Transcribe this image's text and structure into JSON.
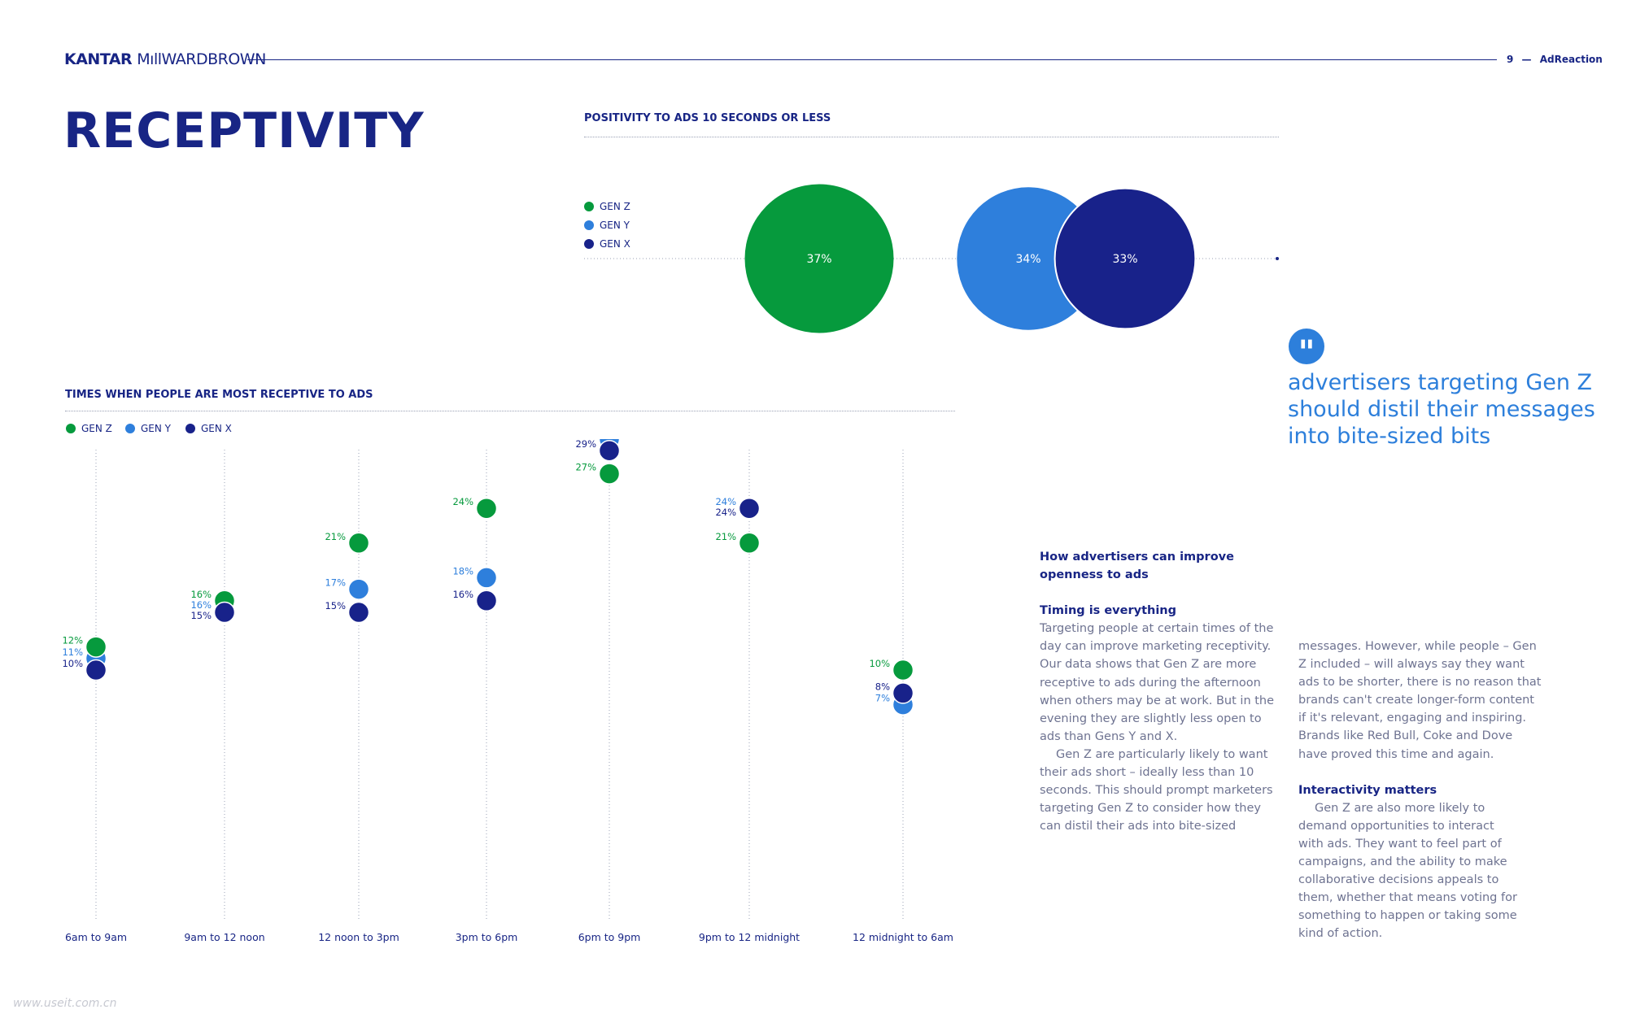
{
  "header": {
    "brand_left": "KANTAR",
    "brand_right": "MıllWARDBROWN",
    "page_number": "9",
    "page_dash": "—",
    "publication": "AdReaction"
  },
  "page_title": "RECEPTIVITY",
  "colors": {
    "gen_z": "#069a3d",
    "gen_y": "#2e7fdc",
    "gen_x": "#18228a",
    "navy_text": "#182585",
    "body_text": "#6e7391"
  },
  "legend": [
    "GEN Z",
    "GEN Y",
    "GEN X"
  ],
  "quote": {
    "icon": "quote-icon",
    "text": "advertisers targeting Gen Z should distil their messages into bite-sized bits"
  },
  "article": {
    "heading": "How advertisers can improve openness to ads",
    "section1_title": "Timing is everything",
    "para1": "Targeting people at certain times of the day can improve marketing receptivity. Our data shows that Gen Z are more receptive to ads during the afternoon when others may be at work. But in the evening they are slightly less open to ads than Gens Y and X.",
    "para2": "Gen Z are particularly likely to want their ads short – ideally less than 10 seconds. This should prompt marketers targeting Gen Z to consider how they can distil their ads into bite-sized",
    "para3": "messages. However, while people – Gen Z included – will always say they want ads to be shorter, there is no reason that brands can't create longer-form content if it's relevant, engaging and inspiring. Brands like Red Bull, Coke and Dove have proved this time and again.",
    "section2_title": "Interactivity matters",
    "para4": "Gen Z are also more likely to demand opportunities to interact with ads. They want to feel part of campaigns, and the ability to make collaborative decisions appeals to them, whether that means voting for something to happen or taking some kind of action."
  },
  "watermark": "www.useit.com.cn",
  "chart_data": [
    {
      "type": "bubble",
      "title": "POSITIVITY TO ADS 10 SECONDS OR LESS",
      "series": [
        {
          "name": "GEN Z",
          "value": 37,
          "label": "37%"
        },
        {
          "name": "GEN Y",
          "value": 34,
          "label": "34%"
        },
        {
          "name": "GEN X",
          "value": 33,
          "label": "33%"
        }
      ],
      "unit": "%"
    },
    {
      "type": "scatter",
      "title": "TIMES WHEN PEOPLE ARE MOST RECEPTIVE TO ADS",
      "categories": [
        "6am to 9am",
        "9am to 12 noon",
        "12 noon to 3pm",
        "3pm to 6pm",
        "6pm to 9pm",
        "9pm to 12 midnight",
        "12 midnight to 6am"
      ],
      "series": [
        {
          "name": "GEN Z",
          "values": [
            12,
            16,
            21,
            24,
            27,
            21,
            10
          ]
        },
        {
          "name": "GEN Y",
          "values": [
            11,
            16,
            17,
            18,
            30,
            24,
            7
          ]
        },
        {
          "name": "GEN X",
          "values": [
            10,
            15,
            15,
            16,
            29,
            24,
            8
          ]
        }
      ],
      "unit": "%",
      "ylim": [
        0,
        36
      ],
      "grid": "vertical dotted lines per category",
      "legend": "top-left"
    }
  ]
}
